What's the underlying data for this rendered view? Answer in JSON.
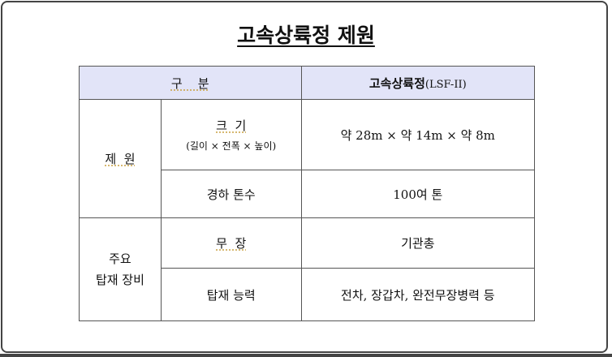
{
  "title": "고속상륙정 제원",
  "table": {
    "header": {
      "category": "구    분",
      "vessel": "고속상륙정",
      "vessel_model": "(LSF-II)"
    },
    "groups": [
      {
        "label": "제  원",
        "rows": [
          {
            "item": "크  기",
            "item_note": "(길이 × 전폭 × 높이)",
            "value": "약 28m × 약 14m × 약 8m"
          },
          {
            "item": "경하 톤수",
            "value": "100여 톤"
          }
        ]
      },
      {
        "label_line1": "주요",
        "label_line2": "탑재 장비",
        "rows": [
          {
            "item": "무  장",
            "value": "기관총"
          },
          {
            "item": "탑재 능력",
            "value": "전차, 장갑차, 완전무장병력 등"
          }
        ]
      }
    ]
  },
  "colors": {
    "header_bg": "#e2e4f8"
  }
}
